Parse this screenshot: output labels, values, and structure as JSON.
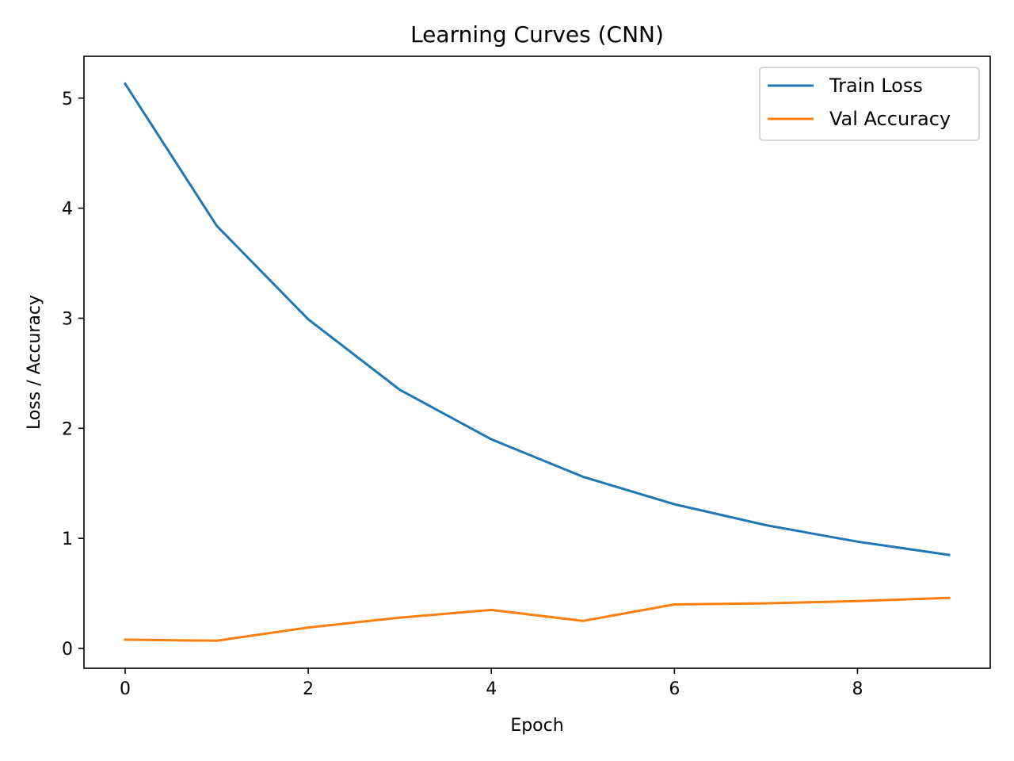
{
  "chart_data": {
    "type": "line",
    "title": "Learning Curves (CNN)",
    "xlabel": "Epoch",
    "ylabel": "Loss / Accuracy",
    "x": [
      0,
      1,
      2,
      3,
      4,
      5,
      6,
      7,
      8,
      9
    ],
    "xlim": [
      -0.45,
      9.45
    ],
    "ylim": [
      -0.18,
      5.38
    ],
    "xticks": [
      0,
      2,
      4,
      6,
      8
    ],
    "yticks": [
      0,
      1,
      2,
      3,
      4,
      5
    ],
    "grid": false,
    "legend_position": "top-right",
    "series": [
      {
        "name": "Train Loss",
        "color": "#1f77b4",
        "values": [
          5.13,
          3.84,
          2.99,
          2.35,
          1.9,
          1.56,
          1.31,
          1.12,
          0.97,
          0.85
        ]
      },
      {
        "name": "Val Accuracy",
        "color": "#ff7f0e",
        "values": [
          0.08,
          0.07,
          0.19,
          0.28,
          0.35,
          0.25,
          0.4,
          0.41,
          0.43,
          0.46
        ]
      }
    ]
  }
}
